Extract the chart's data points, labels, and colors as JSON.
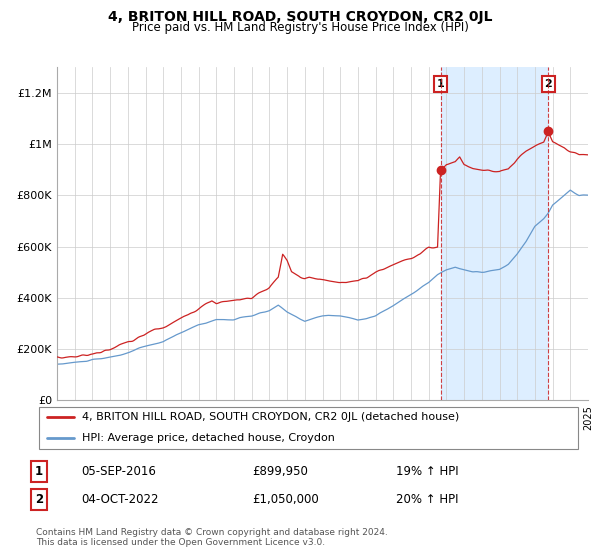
{
  "title": "4, BRITON HILL ROAD, SOUTH CROYDON, CR2 0JL",
  "subtitle": "Price paid vs. HM Land Registry's House Price Index (HPI)",
  "legend_line1": "4, BRITON HILL ROAD, SOUTH CROYDON, CR2 0JL (detached house)",
  "legend_line2": "HPI: Average price, detached house, Croydon",
  "footer": "Contains HM Land Registry data © Crown copyright and database right 2024.\nThis data is licensed under the Open Government Licence v3.0.",
  "transaction1_label": "1",
  "transaction1_date": "05-SEP-2016",
  "transaction1_price": "£899,950",
  "transaction1_hpi": "19% ↑ HPI",
  "transaction2_label": "2",
  "transaction2_date": "04-OCT-2022",
  "transaction2_price": "£1,050,000",
  "transaction2_hpi": "20% ↑ HPI",
  "red_color": "#cc2222",
  "blue_color": "#6699cc",
  "shade_color": "#ddeeff",
  "background_color": "#ffffff",
  "grid_color": "#cccccc",
  "ylim": [
    0,
    1300000
  ],
  "yticks": [
    0,
    200000,
    400000,
    600000,
    800000,
    1000000,
    1200000
  ],
  "ytick_labels": [
    "£0",
    "£200K",
    "£400K",
    "£600K",
    "£800K",
    "£1M",
    "£1.2M"
  ],
  "marker1_x": 2016.67,
  "marker1_y": 899950,
  "marker2_x": 2022.75,
  "marker2_y": 1050000,
  "xmin": 1995,
  "xmax": 2025
}
